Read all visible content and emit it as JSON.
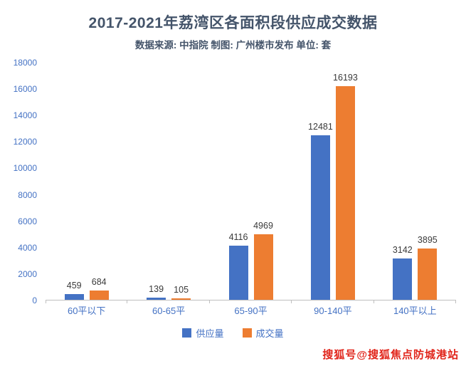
{
  "chart_data": {
    "type": "bar",
    "title": "2017-2021年荔湾区各面积段供应成交数据",
    "subtitle": "数据来源: 中指院 制图: 广州楼市发布 单位: 套",
    "categories": [
      "60平以下",
      "60-65平",
      "65-90平",
      "90-140平",
      "140平以上"
    ],
    "series": [
      {
        "name": "供应量",
        "color": "#4472C4",
        "values": [
          459,
          139,
          4116,
          12481,
          3142
        ]
      },
      {
        "name": "成交量",
        "color": "#ED7D31",
        "values": [
          684,
          105,
          4969,
          16193,
          3895
        ]
      }
    ],
    "xlabel": "",
    "ylabel": "",
    "ylim": [
      0,
      18000
    ],
    "yticks": [
      0,
      2000,
      4000,
      6000,
      8000,
      10000,
      12000,
      14000,
      16000,
      18000
    ],
    "grid": false,
    "legend_position": "bottom"
  },
  "watermark": {
    "text": "搜狐号@搜狐焦点防城港站",
    "color": "#E1251B"
  },
  "colors": {
    "axis_text": "#4472C4",
    "title_text": "#44546A",
    "series_supply": "#4472C4",
    "series_deal": "#ED7D31"
  }
}
